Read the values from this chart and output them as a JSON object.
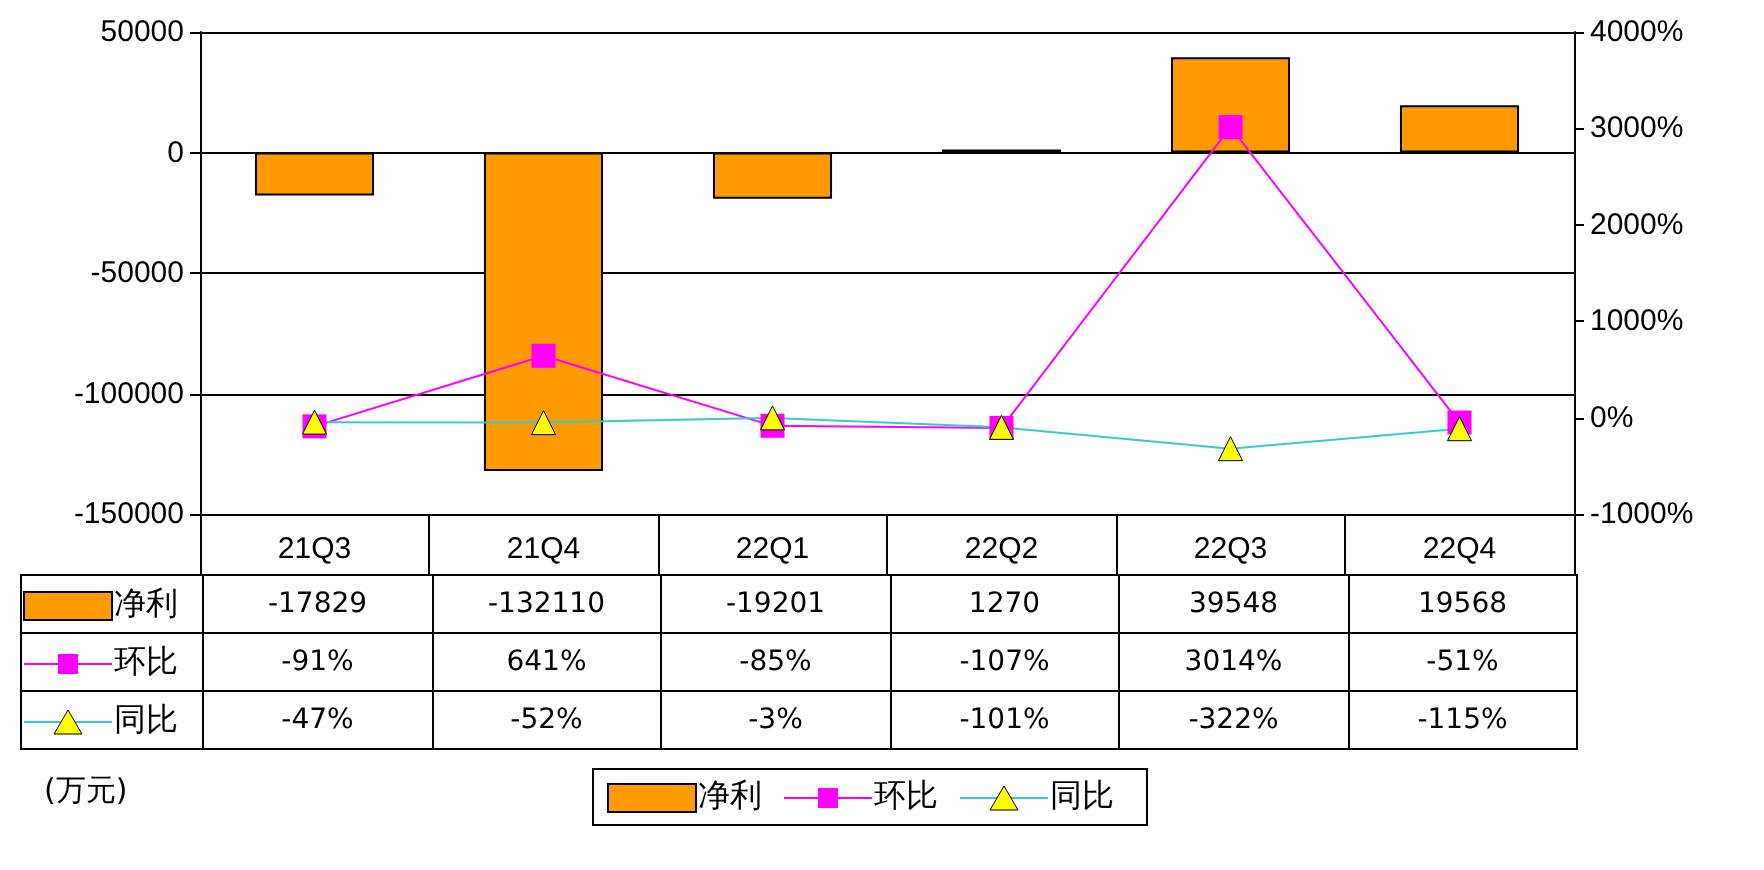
{
  "chart_data": {
    "type": "bar",
    "categories": [
      "21Q3",
      "21Q4",
      "22Q1",
      "22Q2",
      "22Q3",
      "22Q4"
    ],
    "series": [
      {
        "name": "净利",
        "color": "#ff9900",
        "values": [
          -17829,
          -132110,
          -19201,
          1270,
          39548,
          19568
        ],
        "value_labels": [
          "-17829",
          "-132110",
          "-19201",
          "1270",
          "39548",
          "19568"
        ]
      },
      {
        "name": "环比",
        "type": "line",
        "axis": "y2",
        "color": "#ff00ff",
        "marker": "square",
        "values": [
          -91,
          641,
          -85,
          -107,
          3014,
          -51
        ],
        "value_labels": [
          "-91%",
          "641%",
          "-85%",
          "-107%",
          "3014%",
          "-51%"
        ]
      },
      {
        "name": "同比",
        "type": "line",
        "axis": "y2",
        "color": "#33cccc",
        "marker": "triangle",
        "values": [
          -47,
          -52,
          -3,
          -101,
          -322,
          -115
        ],
        "value_labels": [
          "-47%",
          "-52%",
          "-3%",
          "-101%",
          "-322%",
          "-115%"
        ]
      }
    ],
    "ylim": [
      -150000,
      50000
    ],
    "yticks": [
      -150000,
      -100000,
      -50000,
      0,
      50000
    ],
    "y2lim": [
      -1000,
      4000
    ],
    "y2ticks": [
      {
        "value": -1000,
        "label": "-1000%"
      },
      {
        "value": 0,
        "label": "0%"
      },
      {
        "value": 1000,
        "label": "1000%"
      },
      {
        "value": 2000,
        "label": "2000%"
      },
      {
        "value": 3000,
        "label": "3000%"
      },
      {
        "value": 4000,
        "label": "4000%"
      }
    ],
    "grid": "y",
    "legend": "bottom",
    "line_style": "solid",
    "annotations": [
      "(万元)"
    ]
  }
}
